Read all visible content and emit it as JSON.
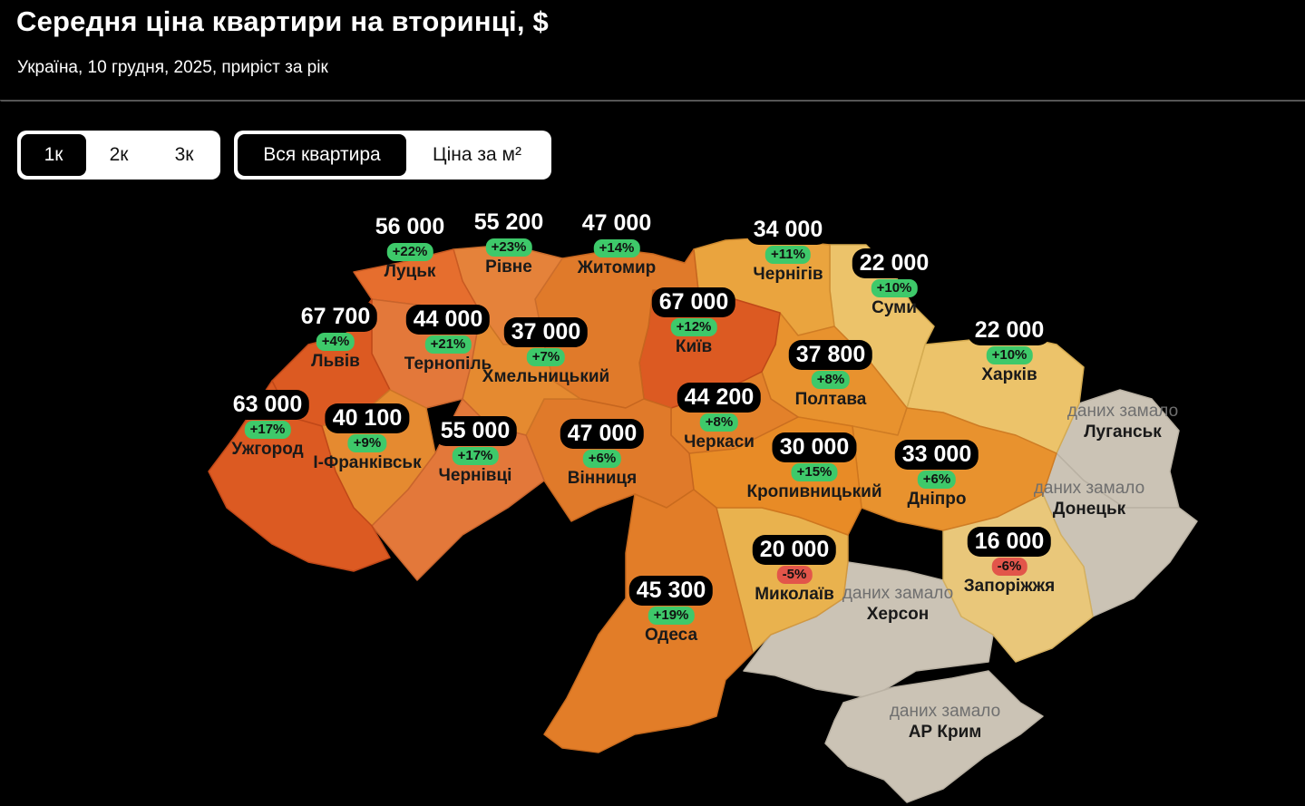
{
  "header": {
    "title": "Середня ціна квартири на вторинці, $",
    "subtitle": "Україна, 10 грудня, 2025, приріст за рік"
  },
  "controls": {
    "rooms": [
      {
        "label": "1к",
        "active": true
      },
      {
        "label": "2к",
        "active": false
      },
      {
        "label": "3к",
        "active": false
      }
    ],
    "mode": [
      {
        "label": "Вся квартира",
        "active": true
      },
      {
        "label": "Ціна за м²",
        "active": false
      }
    ]
  },
  "no_data_label": "даних замало",
  "colors": {
    "up": "#3ec96a",
    "down": "#e2554a",
    "no_data": "#cbc3b5"
  },
  "regions": [
    {
      "name": "Луцьк",
      "price": "56 000",
      "change": "+22%",
      "trend": "up"
    },
    {
      "name": "Рівне",
      "price": "55 200",
      "change": "+23%",
      "trend": "up"
    },
    {
      "name": "Житомир",
      "price": "47 000",
      "change": "+14%",
      "trend": "up"
    },
    {
      "name": "Чернігів",
      "price": "34 000",
      "change": "+11%",
      "trend": "up"
    },
    {
      "name": "Суми",
      "price": "22 000",
      "change": "+10%",
      "trend": "up"
    },
    {
      "name": "Львів",
      "price": "67 700",
      "change": "+4%",
      "trend": "up"
    },
    {
      "name": "Тернопіль",
      "price": "44 000",
      "change": "+21%",
      "trend": "up"
    },
    {
      "name": "Хмельницький",
      "price": "37 000",
      "change": "+7%",
      "trend": "up"
    },
    {
      "name": "Київ",
      "price": "67 000",
      "change": "+12%",
      "trend": "up"
    },
    {
      "name": "Полтава",
      "price": "37 800",
      "change": "+8%",
      "trend": "up"
    },
    {
      "name": "Харків",
      "price": "22 000",
      "change": "+10%",
      "trend": "up"
    },
    {
      "name": "Ужгород",
      "price": "63 000",
      "change": "+17%",
      "trend": "up"
    },
    {
      "name": "І-Франківськ",
      "price": "40 100",
      "change": "+9%",
      "trend": "up"
    },
    {
      "name": "Чернівці",
      "price": "55 000",
      "change": "+17%",
      "trend": "up"
    },
    {
      "name": "Вінниця",
      "price": "47 000",
      "change": "+6%",
      "trend": "up"
    },
    {
      "name": "Черкаси",
      "price": "44 200",
      "change": "+8%",
      "trend": "up"
    },
    {
      "name": "Кропивницький",
      "price": "30 000",
      "change": "+15%",
      "trend": "up"
    },
    {
      "name": "Дніпро",
      "price": "33 000",
      "change": "+6%",
      "trend": "up"
    },
    {
      "name": "Миколаїв",
      "price": "20 000",
      "change": "-5%",
      "trend": "down"
    },
    {
      "name": "Запоріжжя",
      "price": "16 000",
      "change": "-6%",
      "trend": "down"
    },
    {
      "name": "Одеса",
      "price": "45 300",
      "change": "+19%",
      "trend": "up"
    }
  ],
  "no_data_regions": [
    "Луганськ",
    "Донецьк",
    "Херсон",
    "АР Крим"
  ]
}
